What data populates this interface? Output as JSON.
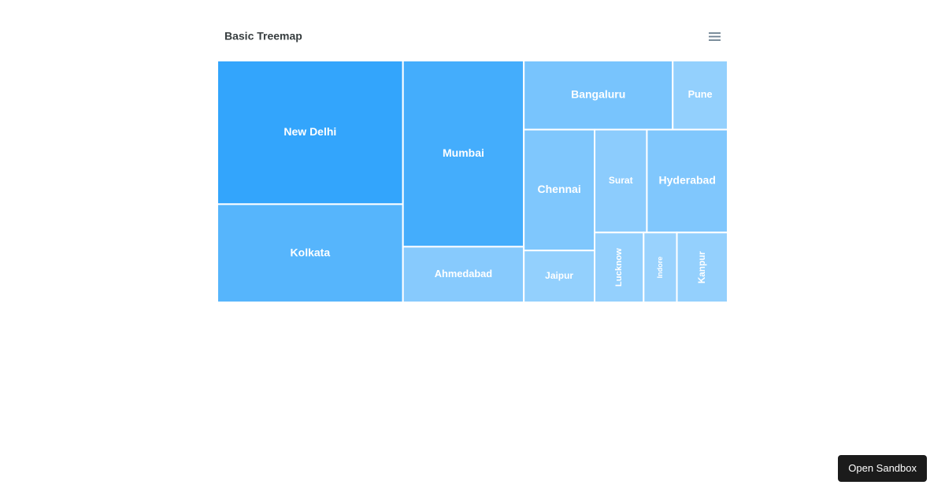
{
  "chart_data": {
    "type": "treemap",
    "title": "Basic Treemap",
    "categories": [
      "New Delhi",
      "Kolkata",
      "Mumbai",
      "Ahmedabad",
      "Bangaluru",
      "Pune",
      "Chennai",
      "Jaipur",
      "Surat",
      "Hyderabad",
      "Lucknow",
      "Indore",
      "Kanpur"
    ],
    "values": [
      218,
      149,
      184,
      55,
      84,
      31,
      70,
      30,
      44,
      68,
      28,
      19,
      29
    ],
    "color": "#008FFB"
  },
  "sandbox_button": "Open Sandbox"
}
